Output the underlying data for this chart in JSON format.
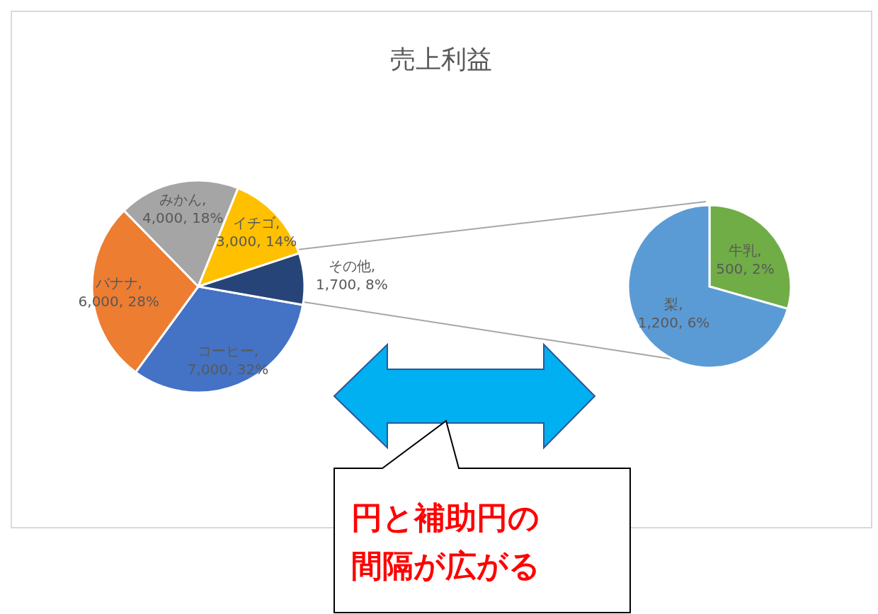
{
  "chart_data": [
    {
      "type": "pie",
      "title": "売上利益",
      "categories": [
        "コーヒー",
        "バナナ",
        "みかん",
        "イチゴ",
        "その他"
      ],
      "values": [
        7000,
        6000,
        4000,
        3000,
        1700
      ],
      "colors": [
        "#4472c4",
        "#ed7d31",
        "#a5a5a5",
        "#ffc000",
        "#264478"
      ],
      "value_labels": [
        ", 7,000, 32%",
        ", 6,000, 28%",
        ", 4,000, 18%",
        ", 3,000, 14%",
        ", 1,700, 8%"
      ],
      "legend": false
    },
    {
      "type": "pie",
      "categories": [
        "牛乳",
        "梨"
      ],
      "values": [
        500,
        1200
      ],
      "colors": [
        "#70ad47",
        "#5b9bd5"
      ],
      "value_labels": [
        ", 500, 2%",
        ", 1,200, 6%"
      ],
      "legend": false,
      "annotations": [
        "円と補助円の間隔が広がる"
      ]
    }
  ]
}
